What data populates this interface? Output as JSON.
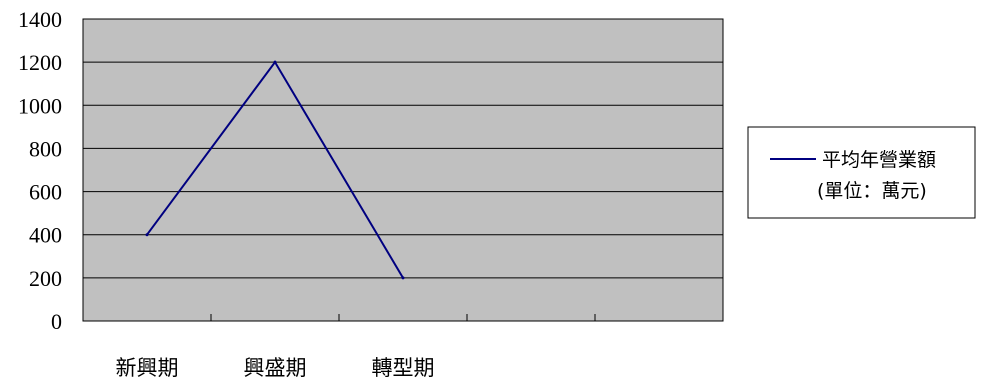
{
  "chart_data": {
    "type": "line",
    "categories": [
      "新興期",
      "興盛期",
      "轉型期",
      "",
      ""
    ],
    "series": [
      {
        "name": "平均年營業額",
        "values": [
          400,
          1200,
          200,
          null,
          null
        ]
      }
    ],
    "legend": {
      "series_name": "平均年營業額",
      "unit_note": "(單位：萬元)",
      "position": "right"
    },
    "ylim": [
      0,
      1400
    ],
    "y_ticks": [
      0,
      200,
      400,
      600,
      800,
      1000,
      1200,
      1400
    ],
    "grid": true,
    "colors": {
      "plot_background": "#c0c0c0",
      "line": "#000080",
      "grid": "#000000"
    }
  }
}
